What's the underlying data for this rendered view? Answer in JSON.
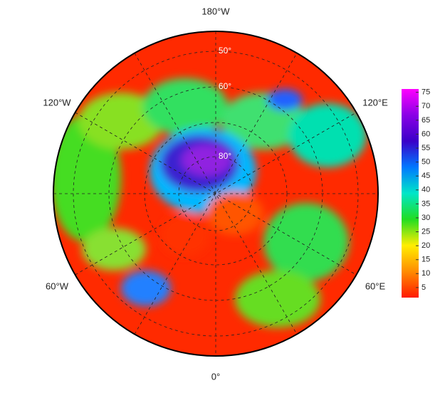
{
  "map": {
    "longitude_labels": [
      "180°W",
      "120°E",
      "60°E",
      "0°",
      "60°W",
      "120°W"
    ],
    "latitude_labels": [
      "50°",
      "60°",
      "80°"
    ],
    "colorbar": {
      "ticks": [
        5,
        10,
        15,
        20,
        25,
        30,
        35,
        40,
        45,
        50,
        55,
        60,
        65,
        70,
        75
      ],
      "range": [
        1.4,
        76.2
      ],
      "colors": [
        "#ff1a00",
        "#ff8c00",
        "#ffee00",
        "#22dd22",
        "#00e6c8",
        "#0078ff",
        "#3a00c8",
        "#8a00e6",
        "#ff00ff"
      ]
    }
  }
}
